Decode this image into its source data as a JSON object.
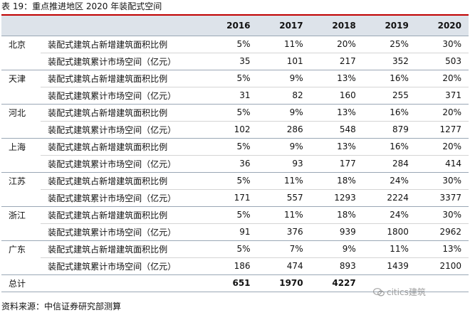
{
  "title": "表 19：重点推进地区 2020 年装配式空间",
  "header": {
    "region": "",
    "metric": "",
    "years": [
      "2016",
      "2017",
      "2018",
      "2019",
      "2020"
    ]
  },
  "regions": [
    {
      "name": "北京",
      "rows": [
        {
          "metric": "装配式建筑占新增建筑面积比例",
          "values": [
            "5%",
            "11%",
            "20%",
            "25%",
            "30%"
          ]
        },
        {
          "metric": "装配式建筑累计市场空间（亿元）",
          "values": [
            "35",
            "101",
            "217",
            "352",
            "503"
          ]
        }
      ]
    },
    {
      "name": "天津",
      "rows": [
        {
          "metric": "装配式建筑占新增建筑面积比例",
          "values": [
            "5%",
            "9%",
            "13%",
            "16%",
            "20%"
          ]
        },
        {
          "metric": "装配式建筑累计市场空间（亿元）",
          "values": [
            "31",
            "82",
            "160",
            "255",
            "371"
          ]
        }
      ]
    },
    {
      "name": "河北",
      "rows": [
        {
          "metric": "装配式建筑占新增建筑面积比例",
          "values": [
            "5%",
            "9%",
            "13%",
            "16%",
            "20%"
          ]
        },
        {
          "metric": "装配式建筑累计市场空间（亿元）",
          "values": [
            "102",
            "286",
            "548",
            "879",
            "1277"
          ]
        }
      ]
    },
    {
      "name": "上海",
      "rows": [
        {
          "metric": "装配式建筑占新增建筑面积比例",
          "values": [
            "5%",
            "9%",
            "13%",
            "16%",
            "20%"
          ]
        },
        {
          "metric": "装配式建筑累计市场空间（亿元）",
          "values": [
            "36",
            "93",
            "177",
            "284",
            "414"
          ]
        }
      ]
    },
    {
      "name": "江苏",
      "rows": [
        {
          "metric": "装配式建筑占新增建筑面积比例",
          "values": [
            "5%",
            "11%",
            "18%",
            "24%",
            "30%"
          ]
        },
        {
          "metric": "装配式建筑累计市场空间（亿元）",
          "values": [
            "171",
            "557",
            "1293",
            "2224",
            "3377"
          ]
        }
      ]
    },
    {
      "name": "浙江",
      "rows": [
        {
          "metric": "装配式建筑占新增建筑面积比例",
          "values": [
            "5%",
            "11%",
            "18%",
            "24%",
            "30%"
          ]
        },
        {
          "metric": "装配式建筑累计市场空间（亿元）",
          "values": [
            "91",
            "376",
            "939",
            "1800",
            "2962"
          ]
        }
      ]
    },
    {
      "name": "广东",
      "rows": [
        {
          "metric": "装配式建筑占新增建筑面积比例",
          "values": [
            "5%",
            "7%",
            "9%",
            "11%",
            "13%"
          ]
        },
        {
          "metric": "装配式建筑累计市场空间（亿元）",
          "values": [
            "186",
            "474",
            "893",
            "1439",
            "2100"
          ]
        }
      ]
    }
  ],
  "total": {
    "label": "总计",
    "values": [
      "651",
      "1970",
      "4227",
      "",
      ""
    ]
  },
  "watermark": "citics建筑",
  "source": "资料来源：中信证券研究部测算",
  "colors": {
    "title_rule": "#c00000",
    "header_bg": "#dde3ea",
    "watermark": "#9a9a9a"
  }
}
